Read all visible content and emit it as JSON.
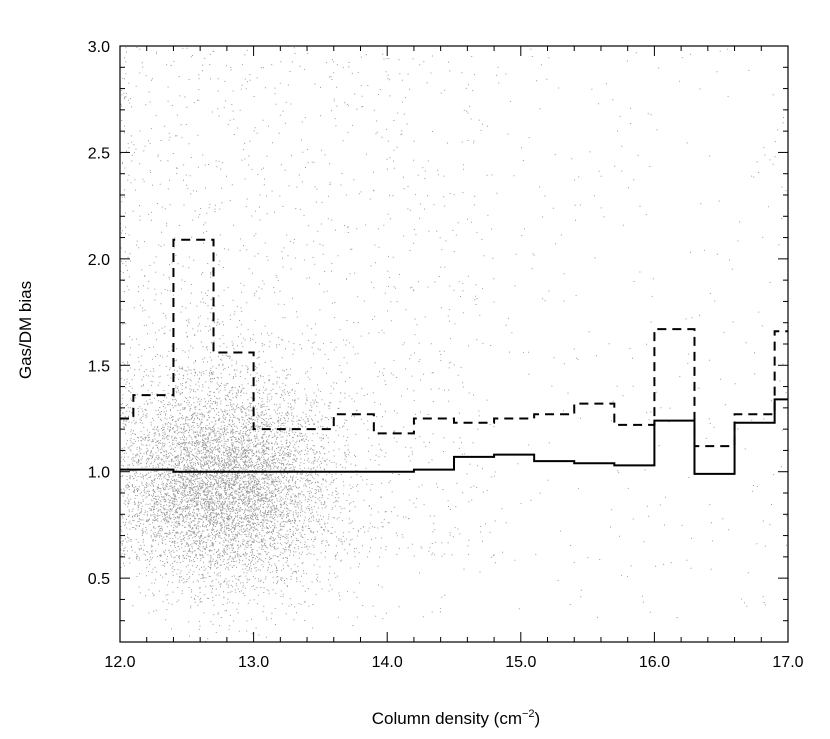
{
  "chart_data": {
    "type": "scatter",
    "title": "",
    "xlabel": "Column density (cm",
    "xlabel_sup": "−2",
    "xlabel_close": ")",
    "ylabel": "Gas/DM bias",
    "xlim": [
      12.0,
      17.0
    ],
    "ylim": [
      0.2,
      3.0
    ],
    "xticks": [
      12.0,
      13.0,
      14.0,
      15.0,
      16.0,
      17.0
    ],
    "xtick_labels": [
      "12.0",
      "13.0",
      "14.0",
      "15.0",
      "16.0",
      "17.0"
    ],
    "yticks": [
      0.5,
      1.0,
      1.5,
      2.0,
      2.5,
      3.0
    ],
    "ytick_labels": [
      "0.5",
      "1.0",
      "1.5",
      "2.0",
      "2.5",
      "3.0"
    ],
    "grid": false,
    "legend": "none",
    "colors": {
      "points": "#9a9a9a",
      "lines": "#000000",
      "axes": "#000000"
    },
    "series": [
      {
        "style": "solid-step",
        "x": [
          12.0,
          12.4,
          12.7,
          13.0,
          13.3,
          13.6,
          13.9,
          14.2,
          14.5,
          14.8,
          15.1,
          15.4,
          15.7,
          16.0,
          16.3,
          16.6,
          16.9,
          17.0
        ],
        "y": [
          1.01,
          1.0,
          1.0,
          1.0,
          1.0,
          1.0,
          1.0,
          1.01,
          1.07,
          1.08,
          1.05,
          1.04,
          1.03,
          1.24,
          0.99,
          1.23,
          1.34,
          1.34
        ]
      },
      {
        "style": "dashed-step",
        "x": [
          12.0,
          12.1,
          12.4,
          12.7,
          13.0,
          13.3,
          13.6,
          13.9,
          14.2,
          14.5,
          14.8,
          15.1,
          15.4,
          15.7,
          16.0,
          16.3,
          16.6,
          16.9,
          17.0
        ],
        "y": [
          1.25,
          1.36,
          2.09,
          1.56,
          1.2,
          1.2,
          1.27,
          1.18,
          1.25,
          1.23,
          1.25,
          1.27,
          1.32,
          1.22,
          1.67,
          1.12,
          1.27,
          1.66,
          1.66
        ]
      },
      {
        "style": "scatter-cloud",
        "core_center": [
          12.7,
          0.95
        ],
        "spread": [
          0.4,
          0.25
        ],
        "point_count_estimate": 9000
      }
    ]
  }
}
